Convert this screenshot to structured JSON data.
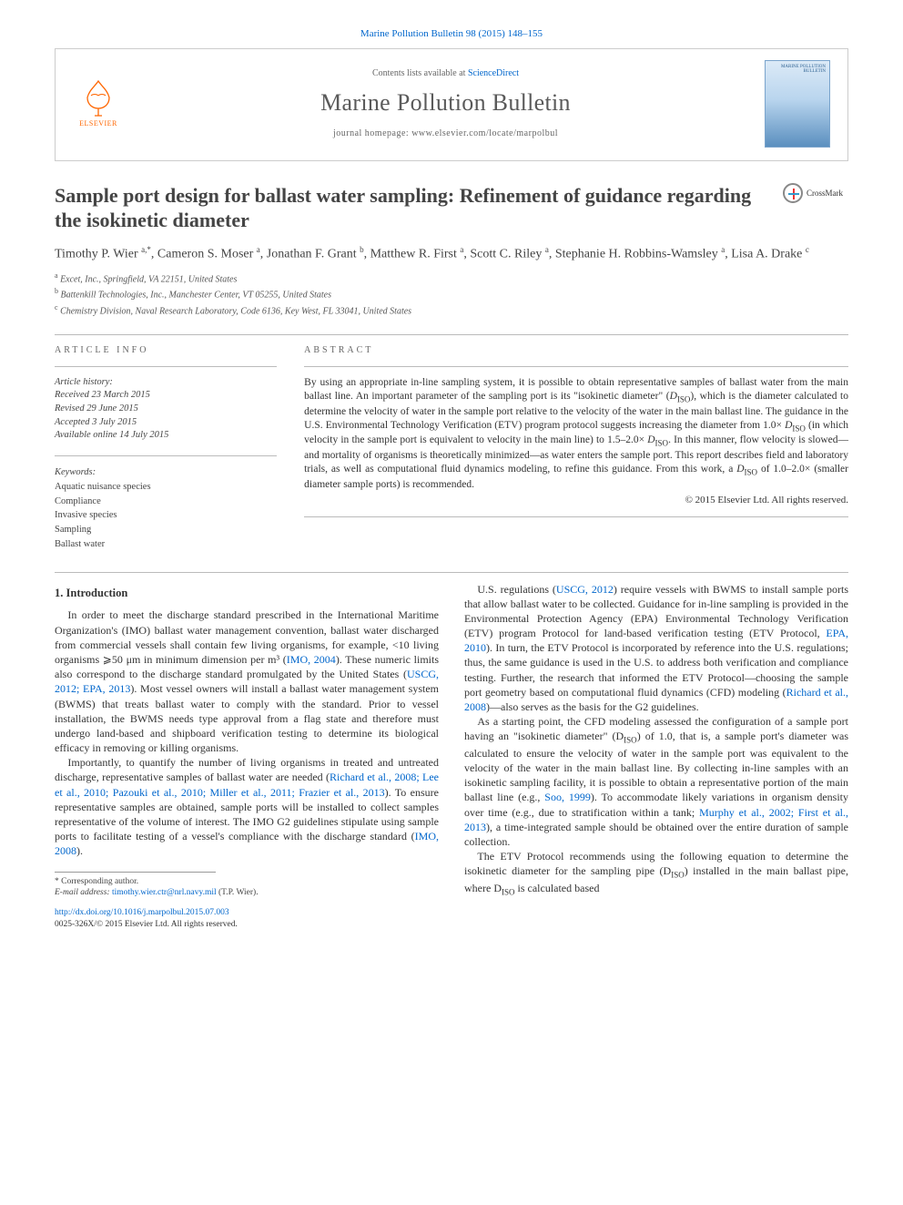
{
  "top_reference": "Marine Pollution Bulletin 98 (2015) 148–155",
  "masthead": {
    "contents_prefix": "Contents lists available at ",
    "contents_link": "ScienceDirect",
    "journal_name": "Marine Pollution Bulletin",
    "homepage_prefix": "journal homepage: ",
    "homepage_url": "www.elsevier.com/locate/marpolbul",
    "publisher": "ELSEVIER",
    "cover_title": "MARINE POLLUTION BULLETIN"
  },
  "crossmark_label": "CrossMark",
  "article": {
    "title": "Sample port design for ballast water sampling: Refinement of guidance regarding the isokinetic diameter",
    "authors_html": "Timothy P. Wier <sup>a,*</sup>, Cameron S. Moser <sup>a</sup>, Jonathan F. Grant <sup>b</sup>, Matthew R. First <sup>a</sup>, Scott C. Riley <sup>a</sup>, Stephanie H. Robbins-Wamsley <sup>a</sup>, Lisa A. Drake <sup>c</sup>",
    "affiliations": {
      "a": "Excet, Inc., Springfield, VA 22151, United States",
      "b": "Battenkill Technologies, Inc., Manchester Center, VT 05255, United States",
      "c": "Chemistry Division, Naval Research Laboratory, Code 6136, Key West, FL 33041, United States"
    }
  },
  "info": {
    "heading": "ARTICLE INFO",
    "history_label": "Article history:",
    "received": "Received 23 March 2015",
    "revised": "Revised 29 June 2015",
    "accepted": "Accepted 3 July 2015",
    "online": "Available online 14 July 2015",
    "keywords_label": "Keywords:",
    "keywords": [
      "Aquatic nuisance species",
      "Compliance",
      "Invasive species",
      "Sampling",
      "Ballast water"
    ]
  },
  "abstract": {
    "heading": "ABSTRACT",
    "text": "By using an appropriate in-line sampling system, it is possible to obtain representative samples of ballast water from the main ballast line. An important parameter of the sampling port is its \"isokinetic diameter\" (D_ISO), which is the diameter calculated to determine the velocity of water in the sample port relative to the velocity of the water in the main ballast line. The guidance in the U.S. Environmental Technology Verification (ETV) program protocol suggests increasing the diameter from 1.0× D_ISO (in which velocity in the sample port is equivalent to velocity in the main line) to 1.5–2.0× D_ISO. In this manner, flow velocity is slowed—and mortality of organisms is theoretically minimized—as water enters the sample port. This report describes field and laboratory trials, as well as computational fluid dynamics modeling, to refine this guidance. From this work, a D_ISO of 1.0–2.0× (smaller diameter sample ports) is recommended.",
    "copyright": "© 2015 Elsevier Ltd. All rights reserved."
  },
  "body": {
    "section1_heading": "1. Introduction",
    "p1_a": "In order to meet the discharge standard prescribed in the International Maritime Organization's (IMO) ballast water management convention, ballast water discharged from commercial vessels shall contain few living organisms, for example, <10 living organisms ⩾50 μm in minimum dimension per m³ (",
    "p1_ref1": "IMO, 2004",
    "p1_b": "). These numeric limits also correspond to the discharge standard promulgated by the United States (",
    "p1_ref2": "USCG, 2012; EPA, 2013",
    "p1_c": "). Most vessel owners will install a ballast water management system (BWMS) that treats ballast water to comply with the standard. Prior to vessel installation, the BWMS needs type approval from a flag state and therefore must undergo land-based and shipboard verification testing to determine its biological efficacy in removing or killing organisms.",
    "p2_a": "Importantly, to quantify the number of living organisms in treated and untreated discharge, representative samples of ballast water are needed (",
    "p2_ref1": "Richard et al., 2008; Lee et al., 2010; Pazouki et al., 2010; Miller et al., 2011; Frazier et al., 2013",
    "p2_b": "). To ensure representative samples are obtained, sample ports will be installed to collect samples representative of the volume of interest. The IMO G2 guidelines stipulate using sample ports to facilitate testing of a vessel's compliance with the discharge standard (",
    "p2_ref2": "IMO, 2008",
    "p2_c": ").",
    "p3_a": "U.S. regulations (",
    "p3_ref1": "USCG, 2012",
    "p3_b": ") require vessels with BWMS to install sample ports that allow ballast water to be collected. Guidance for in-line sampling is provided in the Environmental Protection Agency (EPA) Environmental Technology Verification (ETV) program Protocol for land-based verification testing (ETV Protocol, ",
    "p3_ref2": "EPA, 2010",
    "p3_c": "). In turn, the ETV Protocol is incorporated by reference into the U.S. regulations; thus, the same guidance is used in the U.S. to address both verification and compliance testing. Further, the research that informed the ETV Protocol—choosing the sample port geometry based on computational fluid dynamics (CFD) modeling (",
    "p3_ref3": "Richard et al., 2008",
    "p3_d": ")—also serves as the basis for the G2 guidelines.",
    "p4_a": "As a starting point, the CFD modeling assessed the configuration of a sample port having an \"isokinetic diameter\" (D",
    "p4_sub1": "ISO",
    "p4_b": ") of 1.0, that is, a sample port's diameter was calculated to ensure the velocity of water in the sample port was equivalent to the velocity of the water in the main ballast line. By collecting in-line samples with an isokinetic sampling facility, it is possible to obtain a representative portion of the main ballast line (e.g., ",
    "p4_ref1": "Soo, 1999",
    "p4_c": "). To accommodate likely variations in organism density over time (e.g., due to stratification within a tank; ",
    "p4_ref2": "Murphy et al., 2002; First et al., 2013",
    "p4_d": "), a time-integrated sample should be obtained over the entire duration of sample collection.",
    "p5_a": "The ETV Protocol recommends using the following equation to determine the isokinetic diameter for the sampling pipe (D",
    "p5_sub1": "ISO",
    "p5_b": ") installed in the main ballast pipe, where D",
    "p5_sub2": "ISO",
    "p5_c": " is calculated based"
  },
  "footnote": {
    "corr_label": "* Corresponding author.",
    "email_label": "E-mail address:",
    "email": "timothy.wier.ctr@nrl.navy.mil",
    "email_person": "(T.P. Wier)."
  },
  "doi": {
    "url": "http://dx.doi.org/10.1016/j.marpolbul.2015.07.003",
    "issn_line": "0025-326X/© 2015 Elsevier Ltd. All rights reserved."
  },
  "colors": {
    "link": "#0066cc",
    "text": "#333333",
    "muted": "#666666",
    "rule": "#bbbbbb",
    "elsevier": "#ff6600"
  }
}
